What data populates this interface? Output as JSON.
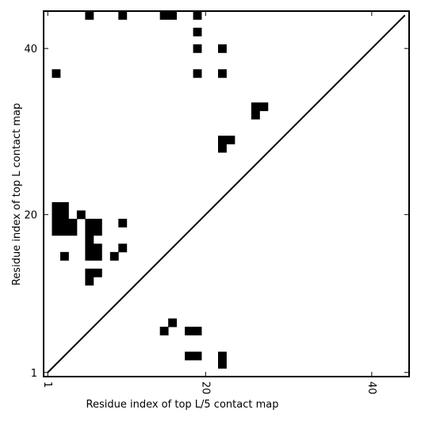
{
  "chart_data": {
    "type": "heatmap",
    "xlabel": "Residue index of top L/5 contact map",
    "ylabel": "Residue index of top L contact map",
    "xlim": [
      0.5,
      44.5
    ],
    "ylim": [
      0.5,
      44.5
    ],
    "xticks": [
      {
        "value": 1,
        "label": "1"
      },
      {
        "value": 20,
        "label": "20"
      },
      {
        "value": 40,
        "label": "40"
      }
    ],
    "yticks": [
      {
        "value": 1,
        "label": "1"
      },
      {
        "value": 20,
        "label": "20"
      },
      {
        "value": 40,
        "label": "40"
      }
    ],
    "diagonal": {
      "from": [
        1,
        1
      ],
      "to": [
        44,
        44
      ]
    },
    "cell_color": "#000000",
    "cells": [
      [
        6,
        44
      ],
      [
        10,
        44
      ],
      [
        15,
        44
      ],
      [
        16,
        44
      ],
      [
        19,
        44
      ],
      [
        19,
        42
      ],
      [
        19,
        40
      ],
      [
        22,
        40
      ],
      [
        2,
        37
      ],
      [
        19,
        37
      ],
      [
        22,
        37
      ],
      [
        26,
        33
      ],
      [
        27,
        33
      ],
      [
        26,
        32
      ],
      [
        22,
        29
      ],
      [
        23,
        29
      ],
      [
        22,
        28
      ],
      [
        2,
        21
      ],
      [
        3,
        21
      ],
      [
        2,
        20
      ],
      [
        3,
        20
      ],
      [
        5,
        20
      ],
      [
        2,
        18
      ],
      [
        3,
        18
      ],
      [
        4,
        18
      ],
      [
        6,
        18
      ],
      [
        7,
        18
      ],
      [
        2,
        19
      ],
      [
        3,
        19
      ],
      [
        4,
        19
      ],
      [
        6,
        19
      ],
      [
        7,
        19
      ],
      [
        10,
        19
      ],
      [
        6,
        17
      ],
      [
        6,
        16
      ],
      [
        7,
        16
      ],
      [
        10,
        16
      ],
      [
        3,
        15
      ],
      [
        6,
        15
      ],
      [
        7,
        15
      ],
      [
        9,
        15
      ],
      [
        6,
        13
      ],
      [
        7,
        13
      ],
      [
        6,
        12
      ],
      [
        16,
        7
      ],
      [
        15,
        6
      ],
      [
        18,
        6
      ],
      [
        19,
        6
      ],
      [
        18,
        3
      ],
      [
        19,
        3
      ],
      [
        22,
        3
      ],
      [
        22,
        2
      ]
    ]
  }
}
